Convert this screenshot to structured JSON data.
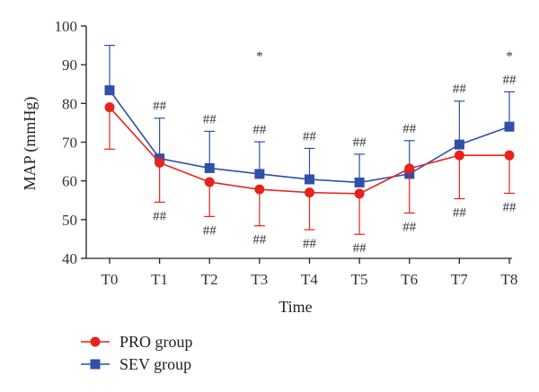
{
  "chart_data": {
    "type": "line",
    "xlabel": "Time",
    "ylabel": "MAP (mmHg)",
    "categories": [
      "T0",
      "T1",
      "T2",
      "T3",
      "T4",
      "T5",
      "T6",
      "T7",
      "T8"
    ],
    "ylim": [
      40,
      100
    ],
    "yticks": [
      40,
      50,
      60,
      70,
      80,
      90,
      100
    ],
    "grid": false,
    "legend_position": "bottom-left",
    "series": [
      {
        "name": "PRO group",
        "color": "#e8221c",
        "marker": "circle",
        "values": [
          79.0,
          64.7,
          59.7,
          57.8,
          57.0,
          56.7,
          63.2,
          66.6,
          66.6
        ],
        "error_minus": [
          10.8,
          10.2,
          8.9,
          9.4,
          9.6,
          10.5,
          11.5,
          11.2,
          9.8
        ],
        "annotations_below": [
          "",
          "##",
          "##",
          "##",
          "##",
          "##",
          "##",
          "##",
          "##"
        ]
      },
      {
        "name": "SEV group",
        "color": "#2f4faa",
        "marker": "square",
        "values": [
          83.4,
          65.8,
          63.3,
          61.8,
          60.4,
          59.6,
          61.8,
          69.4,
          74.0
        ],
        "error_plus": [
          11.6,
          10.4,
          9.5,
          8.3,
          8.0,
          7.3,
          8.6,
          11.2,
          9.0
        ],
        "annotations_above": [
          "",
          "##",
          "##",
          "##",
          "##",
          "##",
          "##",
          "##",
          "##"
        ]
      }
    ],
    "significance_marks": [
      {
        "category": "T3",
        "label": "*"
      },
      {
        "category": "T8",
        "label": "*"
      }
    ]
  }
}
